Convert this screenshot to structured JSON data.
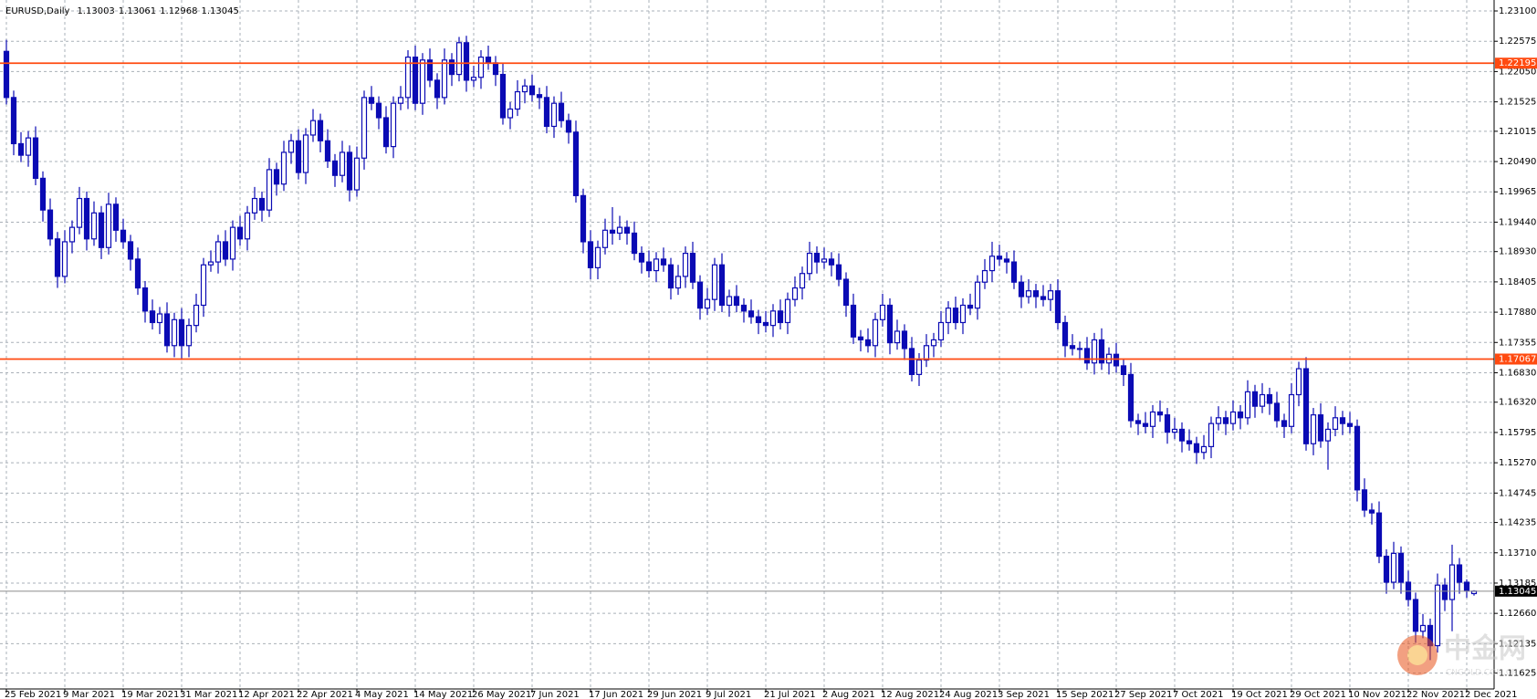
{
  "chart_data": {
    "type": "candlestick",
    "title": "EURUSD,Daily",
    "candle_color": "#0b0bb4",
    "grid": true,
    "grid_color": "#a9b0b8",
    "ylim": [
      1.1135,
      1.2329
    ],
    "yticks": [
      {
        "value": 1.231,
        "label": "1.23100"
      },
      1.22575,
      {
        "value": 1.2205,
        "label": "1.22050"
      },
      1.21525,
      1.21015,
      {
        "value": 1.2049,
        "label": "1.20490"
      },
      1.19965,
      {
        "value": 1.1944,
        "label": "1.19440"
      },
      {
        "value": 1.1893,
        "label": "1.18930"
      },
      1.18405,
      {
        "value": 1.1788,
        "label": "1.17880"
      },
      1.17355,
      {
        "value": 1.1683,
        "label": "1.16830"
      },
      {
        "value": 1.1632,
        "label": "1.16320"
      },
      1.15795,
      {
        "value": 1.1527,
        "label": "1.15270"
      },
      1.14745,
      1.14235,
      {
        "value": 1.1371,
        "label": "1.13710"
      },
      1.13185,
      {
        "value": 1.1266,
        "label": "1.12660"
      },
      1.12135,
      1.11625
    ],
    "hlines": [
      {
        "value": 1.22195,
        "color": "#ff4a10"
      },
      {
        "value": 1.17067,
        "color": "#ff4a10"
      }
    ],
    "price_line_color": "#8c8c8c",
    "watermark": {
      "text": "中金网",
      "sub": "CNGOLD.COM.CN"
    },
    "categories": [
      "25 Feb 2021",
      null,
      null,
      null,
      null,
      null,
      null,
      null,
      "9 Mar 2021",
      null,
      null,
      null,
      null,
      null,
      null,
      null,
      "19 Mar 2021",
      null,
      null,
      null,
      null,
      null,
      null,
      null,
      "31 Mar 2021",
      null,
      null,
      null,
      null,
      null,
      null,
      null,
      "12 Apr 2021",
      null,
      null,
      null,
      null,
      null,
      null,
      null,
      "22 Apr 2021",
      null,
      null,
      null,
      null,
      null,
      null,
      null,
      "4 May 2021",
      null,
      null,
      null,
      null,
      null,
      null,
      null,
      "14 May 2021",
      null,
      null,
      null,
      null,
      null,
      null,
      null,
      "26 May 2021",
      null,
      null,
      null,
      null,
      null,
      null,
      null,
      "7 Jun 2021",
      null,
      null,
      null,
      null,
      null,
      null,
      null,
      "17 Jun 2021",
      null,
      null,
      null,
      null,
      null,
      null,
      null,
      "29 Jun 2021",
      null,
      null,
      null,
      null,
      null,
      null,
      null,
      "9 Jul 2021",
      null,
      null,
      null,
      null,
      null,
      null,
      null,
      "21 Jul 2021",
      null,
      null,
      null,
      null,
      null,
      null,
      null,
      "2 Aug 2021",
      null,
      null,
      null,
      null,
      null,
      null,
      null,
      "12 Aug 2021",
      null,
      null,
      null,
      null,
      null,
      null,
      null,
      "24 Aug 2021",
      null,
      null,
      null,
      null,
      null,
      null,
      null,
      "3 Sep 2021",
      null,
      null,
      null,
      null,
      null,
      null,
      null,
      "15 Sep 2021",
      null,
      null,
      null,
      null,
      null,
      null,
      null,
      "27 Sep 2021",
      null,
      null,
      null,
      null,
      null,
      null,
      null,
      "7 Oct 2021",
      null,
      null,
      null,
      null,
      null,
      null,
      null,
      "19 Oct 2021",
      null,
      null,
      null,
      null,
      null,
      null,
      null,
      "29 Oct 2021",
      null,
      null,
      null,
      null,
      null,
      null,
      null,
      "10 Nov 2021",
      null,
      null,
      null,
      null,
      null,
      null,
      null,
      "22 Nov 2021",
      null,
      null,
      null,
      null,
      null,
      null,
      null,
      "2 Dec 2021",
      null
    ],
    "open": [
      1.224,
      1.216,
      1.208,
      1.206,
      1.209,
      1.202,
      1.1965,
      1.1915,
      1.185,
      1.191,
      1.1935,
      1.1985,
      1.1915,
      1.196,
      1.19,
      1.1975,
      1.193,
      1.191,
      1.188,
      1.183,
      1.179,
      1.177,
      1.1785,
      1.173,
      1.1775,
      1.173,
      1.1765,
      1.18,
      1.187,
      1.1875,
      1.191,
      1.188,
      1.1935,
      1.1915,
      1.196,
      1.1985,
      1.1965,
      1.2035,
      1.201,
      1.2065,
      1.2085,
      1.203,
      1.2095,
      1.212,
      1.2085,
      1.205,
      1.2025,
      1.2065,
      1.2,
      1.2055,
      1.216,
      1.215,
      1.2125,
      1.2075,
      1.215,
      1.216,
      1.223,
      1.215,
      1.2225,
      1.219,
      1.216,
      1.2225,
      1.22,
      1.2255,
      1.219,
      1.2195,
      1.223,
      1.222,
      1.22,
      1.2125,
      1.214,
      1.217,
      1.218,
      1.2165,
      1.216,
      1.211,
      1.215,
      1.212,
      1.21,
      1.199,
      1.191,
      1.1865,
      1.19,
      1.193,
      1.1925,
      1.1935,
      1.1925,
      1.189,
      1.1875,
      1.186,
      1.188,
      1.187,
      1.183,
      1.185,
      1.189,
      1.184,
      1.1795,
      1.181,
      1.187,
      1.18,
      1.1815,
      1.18,
      1.179,
      1.178,
      1.177,
      1.1765,
      1.179,
      1.177,
      1.181,
      1.183,
      1.1855,
      1.189,
      1.1875,
      1.188,
      1.187,
      1.1845,
      1.18,
      1.1745,
      1.174,
      1.173,
      1.1775,
      1.18,
      1.1735,
      1.1755,
      1.1725,
      1.168,
      1.1705,
      1.173,
      1.174,
      1.177,
      1.1795,
      1.177,
      1.18,
      1.1795,
      1.184,
      1.186,
      1.1885,
      1.188,
      1.1875,
      1.184,
      1.1815,
      1.1825,
      1.1815,
      1.181,
      1.1825,
      1.177,
      1.173,
      1.1725,
      1.1725,
      1.17,
      1.174,
      1.17,
      1.1715,
      1.1695,
      1.168,
      1.16,
      1.1595,
      1.159,
      1.1615,
      1.161,
      1.158,
      1.1585,
      1.1565,
      1.156,
      1.1545,
      1.1555,
      1.1595,
      1.1605,
      1.1595,
      1.1615,
      1.1605,
      1.165,
      1.1625,
      1.1645,
      1.163,
      1.16,
      1.159,
      1.1645,
      1.169,
      1.156,
      1.161,
      1.1565,
      1.1585,
      1.1605,
      1.1595,
      1.159,
      1.148,
      1.1445,
      1.144,
      1.1365,
      1.132,
      1.137,
      1.132,
      1.129,
      1.1235,
      1.1245,
      1.121,
      1.1315,
      1.129,
      1.135,
      1.132,
      1.13003
    ],
    "high": [
      1.226,
      1.2172,
      1.21,
      1.2102,
      1.211,
      1.2032,
      1.1985,
      1.1927,
      1.193,
      1.1947,
      1.2005,
      1.1997,
      1.198,
      1.1972,
      1.1995,
      1.1987,
      1.195,
      1.1922,
      1.19,
      1.1842,
      1.181,
      1.1797,
      1.1805,
      1.1787,
      1.1795,
      1.1777,
      1.182,
      1.1882,
      1.1895,
      1.1922,
      1.193,
      1.1947,
      1.1955,
      1.1972,
      1.2005,
      1.1997,
      1.2055,
      1.2047,
      1.2085,
      1.2097,
      1.2105,
      1.2107,
      1.214,
      1.2132,
      1.2105,
      1.2062,
      1.2085,
      1.2077,
      1.2075,
      1.2172,
      1.218,
      1.2162,
      1.2145,
      1.2162,
      1.218,
      1.2242,
      1.225,
      1.2237,
      1.2245,
      1.2202,
      1.2245,
      1.2237,
      1.2265,
      1.2267,
      1.2215,
      1.2242,
      1.225,
      1.2232,
      1.222,
      1.2152,
      1.219,
      1.2192,
      1.22,
      1.2177,
      1.218,
      1.2162,
      1.217,
      1.2132,
      1.212,
      1.2002,
      1.193,
      1.1912,
      1.195,
      1.197,
      1.1955,
      1.1947,
      1.1945,
      1.1902,
      1.1895,
      1.1892,
      1.19,
      1.1882,
      1.187,
      1.1902,
      1.191,
      1.1852,
      1.183,
      1.1882,
      1.189,
      1.1827,
      1.1835,
      1.1812,
      1.181,
      1.1792,
      1.179,
      1.1802,
      1.181,
      1.1822,
      1.185,
      1.1867,
      1.191,
      1.1902,
      1.19,
      1.1892,
      1.189,
      1.1857,
      1.182,
      1.1757,
      1.176,
      1.1787,
      1.182,
      1.1812,
      1.1775,
      1.1767,
      1.1745,
      1.1717,
      1.175,
      1.1752,
      1.179,
      1.1807,
      1.1815,
      1.1812,
      1.182,
      1.1852,
      1.188,
      1.191,
      1.1905,
      1.1892,
      1.1895,
      1.1852,
      1.1845,
      1.1837,
      1.1835,
      1.1837,
      1.1845,
      1.1782,
      1.175,
      1.1737,
      1.1745,
      1.1752,
      1.176,
      1.1727,
      1.1735,
      1.1707,
      1.17,
      1.1612,
      1.1615,
      1.1627,
      1.1635,
      1.1622,
      1.1605,
      1.1597,
      1.1585,
      1.1572,
      1.1575,
      1.1607,
      1.1625,
      1.1617,
      1.1635,
      1.1627,
      1.167,
      1.1662,
      1.1665,
      1.1657,
      1.165,
      1.1612,
      1.1665,
      1.1702,
      1.171,
      1.1622,
      1.163,
      1.1597,
      1.1625,
      1.1617,
      1.1615,
      1.1602,
      1.15,
      1.1457,
      1.146,
      1.1377,
      1.139,
      1.1382,
      1.134,
      1.1302,
      1.1265,
      1.1257,
      1.1335,
      1.1327,
      1.1385,
      1.1362,
      1.1325,
      1.13061
    ],
    "low": [
      1.2148,
      1.206,
      1.2048,
      1.204,
      1.2008,
      1.1945,
      1.1903,
      1.183,
      1.1838,
      1.189,
      1.1923,
      1.1895,
      1.1903,
      1.188,
      1.1888,
      1.191,
      1.1898,
      1.186,
      1.1818,
      1.177,
      1.1758,
      1.175,
      1.1718,
      1.171,
      1.1705,
      1.171,
      1.1753,
      1.178,
      1.1858,
      1.1855,
      1.1868,
      1.186,
      1.1903,
      1.1895,
      1.1948,
      1.1945,
      1.1953,
      1.199,
      1.1998,
      1.2045,
      1.2018,
      1.201,
      1.2083,
      1.2065,
      1.2038,
      1.2005,
      1.2013,
      1.198,
      1.1988,
      1.2035,
      1.2138,
      1.2105,
      1.2063,
      1.2055,
      1.2138,
      1.214,
      1.2138,
      1.213,
      1.2178,
      1.214,
      1.2148,
      1.218,
      1.2188,
      1.217,
      1.2178,
      1.2175,
      1.2208,
      1.218,
      1.2113,
      1.2105,
      1.2128,
      1.215,
      1.2153,
      1.214,
      1.2098,
      1.209,
      1.2108,
      1.208,
      1.1978,
      1.189,
      1.1845,
      1.1845,
      1.1888,
      1.1905,
      1.1913,
      1.1905,
      1.1878,
      1.1855,
      1.1848,
      1.184,
      1.1858,
      1.181,
      1.1818,
      1.183,
      1.1828,
      1.1775,
      1.1783,
      1.179,
      1.1788,
      1.178,
      1.1788,
      1.177,
      1.1768,
      1.175,
      1.1753,
      1.1745,
      1.1758,
      1.175,
      1.1798,
      1.181,
      1.1843,
      1.1855,
      1.1863,
      1.185,
      1.1833,
      1.178,
      1.1733,
      1.172,
      1.1718,
      1.171,
      1.1763,
      1.1715,
      1.1723,
      1.1705,
      1.1668,
      1.166,
      1.1693,
      1.171,
      1.1728,
      1.175,
      1.1758,
      1.175,
      1.1783,
      1.1775,
      1.1828,
      1.184,
      1.1868,
      1.1855,
      1.1828,
      1.1795,
      1.1803,
      1.1795,
      1.1798,
      1.179,
      1.1758,
      1.171,
      1.1713,
      1.1705,
      1.1688,
      1.168,
      1.1688,
      1.168,
      1.1683,
      1.166,
      1.1588,
      1.1575,
      1.1578,
      1.157,
      1.1598,
      1.156,
      1.1568,
      1.1545,
      1.1548,
      1.1525,
      1.1533,
      1.1535,
      1.1583,
      1.1575,
      1.1583,
      1.1585,
      1.1593,
      1.1605,
      1.1613,
      1.161,
      1.1588,
      1.157,
      1.1578,
      1.1625,
      1.1548,
      1.154,
      1.1553,
      1.1515,
      1.1573,
      1.1575,
      1.1578,
      1.146,
      1.1433,
      1.142,
      1.1353,
      1.13,
      1.1308,
      1.13,
      1.1278,
      1.1215,
      1.1223,
      1.1185,
      1.1198,
      1.127,
      1.1235,
      1.13,
      1.1293,
      1.12968
    ],
    "close": [
      1.216,
      1.208,
      1.206,
      1.209,
      1.202,
      1.1965,
      1.1915,
      1.185,
      1.191,
      1.1935,
      1.1985,
      1.1915,
      1.196,
      1.19,
      1.1975,
      1.193,
      1.191,
      1.188,
      1.183,
      1.179,
      1.177,
      1.1785,
      1.173,
      1.1775,
      1.173,
      1.1765,
      1.18,
      1.187,
      1.1875,
      1.191,
      1.188,
      1.1935,
      1.1915,
      1.196,
      1.1985,
      1.1965,
      1.2035,
      1.201,
      1.2065,
      1.2085,
      1.203,
      1.2095,
      1.212,
      1.2085,
      1.205,
      1.2025,
      1.2065,
      1.2,
      1.2055,
      1.216,
      1.215,
      1.2125,
      1.2075,
      1.215,
      1.216,
      1.223,
      1.215,
      1.2225,
      1.219,
      1.216,
      1.2225,
      1.22,
      1.2255,
      1.219,
      1.2195,
      1.223,
      1.222,
      1.22,
      1.2125,
      1.214,
      1.217,
      1.218,
      1.2165,
      1.216,
      1.211,
      1.215,
      1.212,
      1.21,
      1.199,
      1.191,
      1.1865,
      1.19,
      1.193,
      1.1925,
      1.1935,
      1.1925,
      1.189,
      1.1875,
      1.186,
      1.188,
      1.187,
      1.183,
      1.185,
      1.189,
      1.184,
      1.1795,
      1.181,
      1.187,
      1.18,
      1.1815,
      1.18,
      1.179,
      1.178,
      1.177,
      1.1765,
      1.179,
      1.177,
      1.181,
      1.183,
      1.1855,
      1.189,
      1.1875,
      1.188,
      1.187,
      1.1845,
      1.18,
      1.1745,
      1.174,
      1.173,
      1.1775,
      1.18,
      1.1735,
      1.1755,
      1.1725,
      1.168,
      1.1705,
      1.173,
      1.174,
      1.177,
      1.1795,
      1.177,
      1.18,
      1.1795,
      1.184,
      1.186,
      1.1885,
      1.188,
      1.1875,
      1.184,
      1.1815,
      1.1825,
      1.1815,
      1.181,
      1.1825,
      1.177,
      1.173,
      1.1725,
      1.1725,
      1.17,
      1.174,
      1.17,
      1.1715,
      1.1695,
      1.168,
      1.16,
      1.1595,
      1.159,
      1.1615,
      1.161,
      1.158,
      1.1585,
      1.1565,
      1.156,
      1.1545,
      1.1555,
      1.1595,
      1.1605,
      1.1595,
      1.1615,
      1.1605,
      1.165,
      1.1625,
      1.1645,
      1.163,
      1.16,
      1.159,
      1.1645,
      1.169,
      1.156,
      1.161,
      1.1565,
      1.1585,
      1.1605,
      1.1595,
      1.159,
      1.148,
      1.1445,
      1.144,
      1.1365,
      1.132,
      1.137,
      1.132,
      1.129,
      1.1235,
      1.1245,
      1.121,
      1.1315,
      1.129,
      1.135,
      1.132,
      1.1305,
      1.13045
    ]
  }
}
